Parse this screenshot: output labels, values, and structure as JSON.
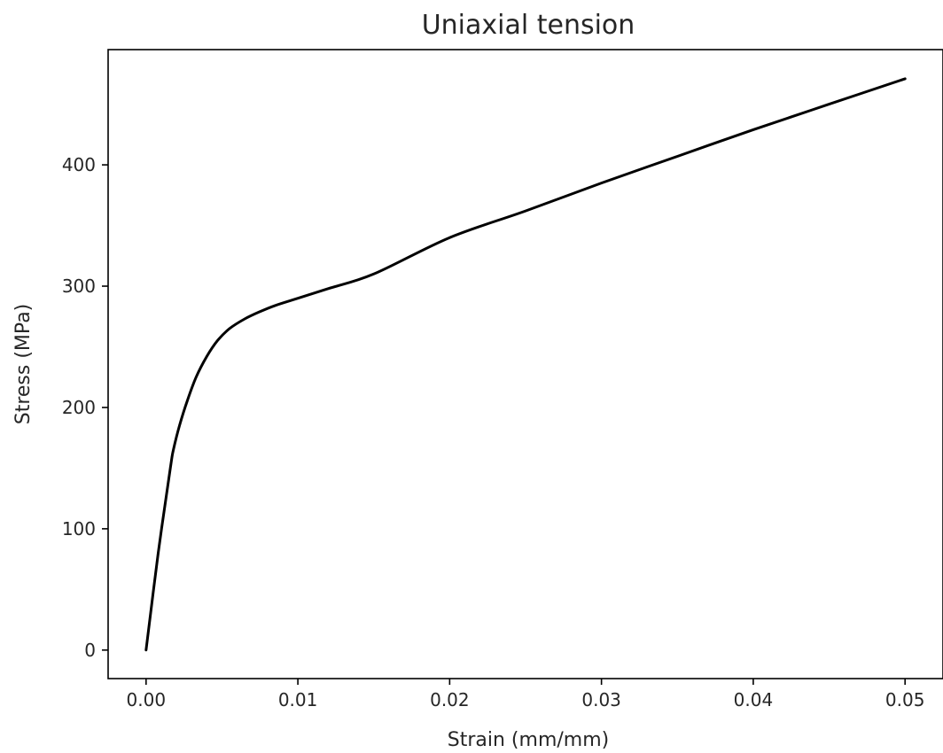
{
  "chart_data": {
    "type": "line",
    "title": "Uniaxial tension",
    "xlabel": "Strain (mm/mm)",
    "ylabel": "Stress (MPa)",
    "xlim": [
      -0.0025,
      0.0525
    ],
    "ylim": [
      -23.5,
      495
    ],
    "xticks": [
      0.0,
      0.01,
      0.02,
      0.03,
      0.04,
      0.05
    ],
    "xtick_labels": [
      "0.00",
      "0.01",
      "0.02",
      "0.03",
      "0.04",
      "0.05"
    ],
    "yticks": [
      0,
      100,
      200,
      300,
      400
    ],
    "ytick_labels": [
      "0",
      "100",
      "200",
      "300",
      "400"
    ],
    "grid": false,
    "series": [
      {
        "color": "#000000",
        "x": [
          0.0,
          0.0008,
          0.0016,
          0.0018,
          0.0022,
          0.0027,
          0.0033,
          0.004,
          0.0047,
          0.0055,
          0.0065,
          0.0075,
          0.0085,
          0.01,
          0.012,
          0.015,
          0.02,
          0.025,
          0.03,
          0.035,
          0.04,
          0.045,
          0.05
        ],
        "y": [
          0,
          80,
          150,
          165,
          185,
          205,
          225,
          242,
          255,
          265,
          273,
          279,
          284,
          290,
          298,
          310,
          340,
          362,
          385,
          407,
          429,
          450,
          471
        ]
      }
    ]
  }
}
